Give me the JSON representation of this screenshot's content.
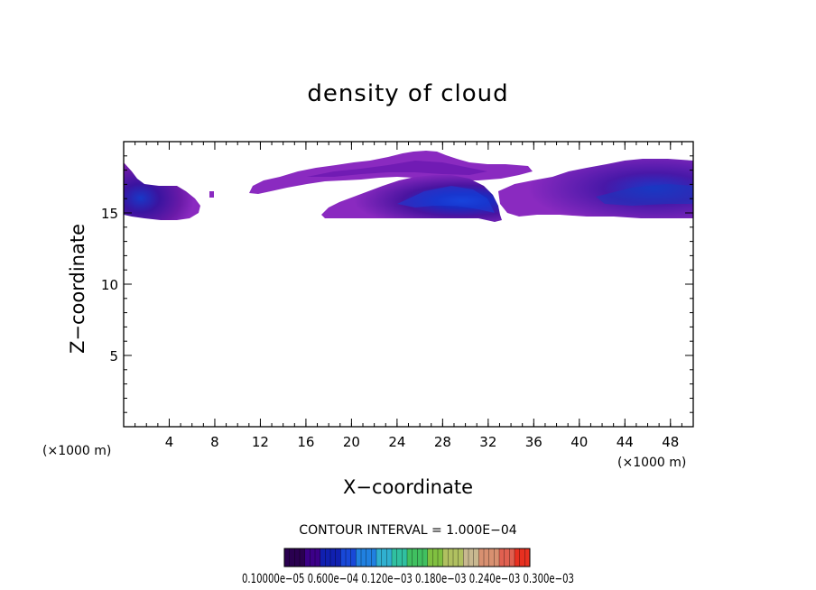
{
  "chart_data": {
    "type": "heatmap",
    "title": "density of cloud",
    "xlabel": "X−coordinate",
    "ylabel": "Z−coordinate",
    "x_unit_left": "(×1000 m)",
    "x_unit_right": "(×1000 m)",
    "xlim": [
      0,
      50
    ],
    "ylim": [
      0,
      20
    ],
    "x_ticks": [
      4,
      8,
      12,
      16,
      20,
      24,
      28,
      32,
      36,
      40,
      44,
      48
    ],
    "y_ticks": [
      5,
      10,
      15
    ],
    "contour_interval_label": "CONTOUR INTERVAL = 1.000E−04",
    "colorbar_label": "0.10000e−05 0.600e−04 0.120e−03 0.180e−03 0.240e−03 0.300e−03",
    "colorbar_colors": [
      "#2a0050",
      "#3c0088",
      "#1020b0",
      "#1848d8",
      "#2080e0",
      "#30b0d0",
      "#30c0a0",
      "#40c060",
      "#80c040",
      "#b0c060",
      "#c8b890",
      "#d89070",
      "#e06050",
      "#e83020"
    ],
    "regions": [
      {
        "name": "left-cloud",
        "x0": 0,
        "x1": 6.8,
        "zbase": 14.6,
        "ztop": 18.2,
        "core_x": 1.5,
        "core_z": 15.7,
        "peak": 0.55
      },
      {
        "name": "small-blob",
        "x0": 7.7,
        "x1": 8.2,
        "zbase": 15.9,
        "ztop": 16.4,
        "core_x": 8.0,
        "core_z": 16.1,
        "peak": 0.15
      },
      {
        "name": "upper-thin-layer",
        "x0": 11,
        "x1": 35,
        "zbase": 16.6,
        "ztop": 18.8,
        "core_x": 24,
        "core_z": 17.5,
        "peak": 0.2
      },
      {
        "name": "central-cloud",
        "x0": 17.5,
        "x1": 33,
        "zbase": 14.7,
        "ztop": 18.0,
        "core_x": 29,
        "core_z": 16.7,
        "peak": 0.85
      },
      {
        "name": "right-cloud",
        "x0": 33,
        "x1": 50,
        "zbase": 14.8,
        "ztop": 18.5,
        "core_x": 46,
        "core_z": 16.2,
        "peak": 0.6
      }
    ]
  }
}
